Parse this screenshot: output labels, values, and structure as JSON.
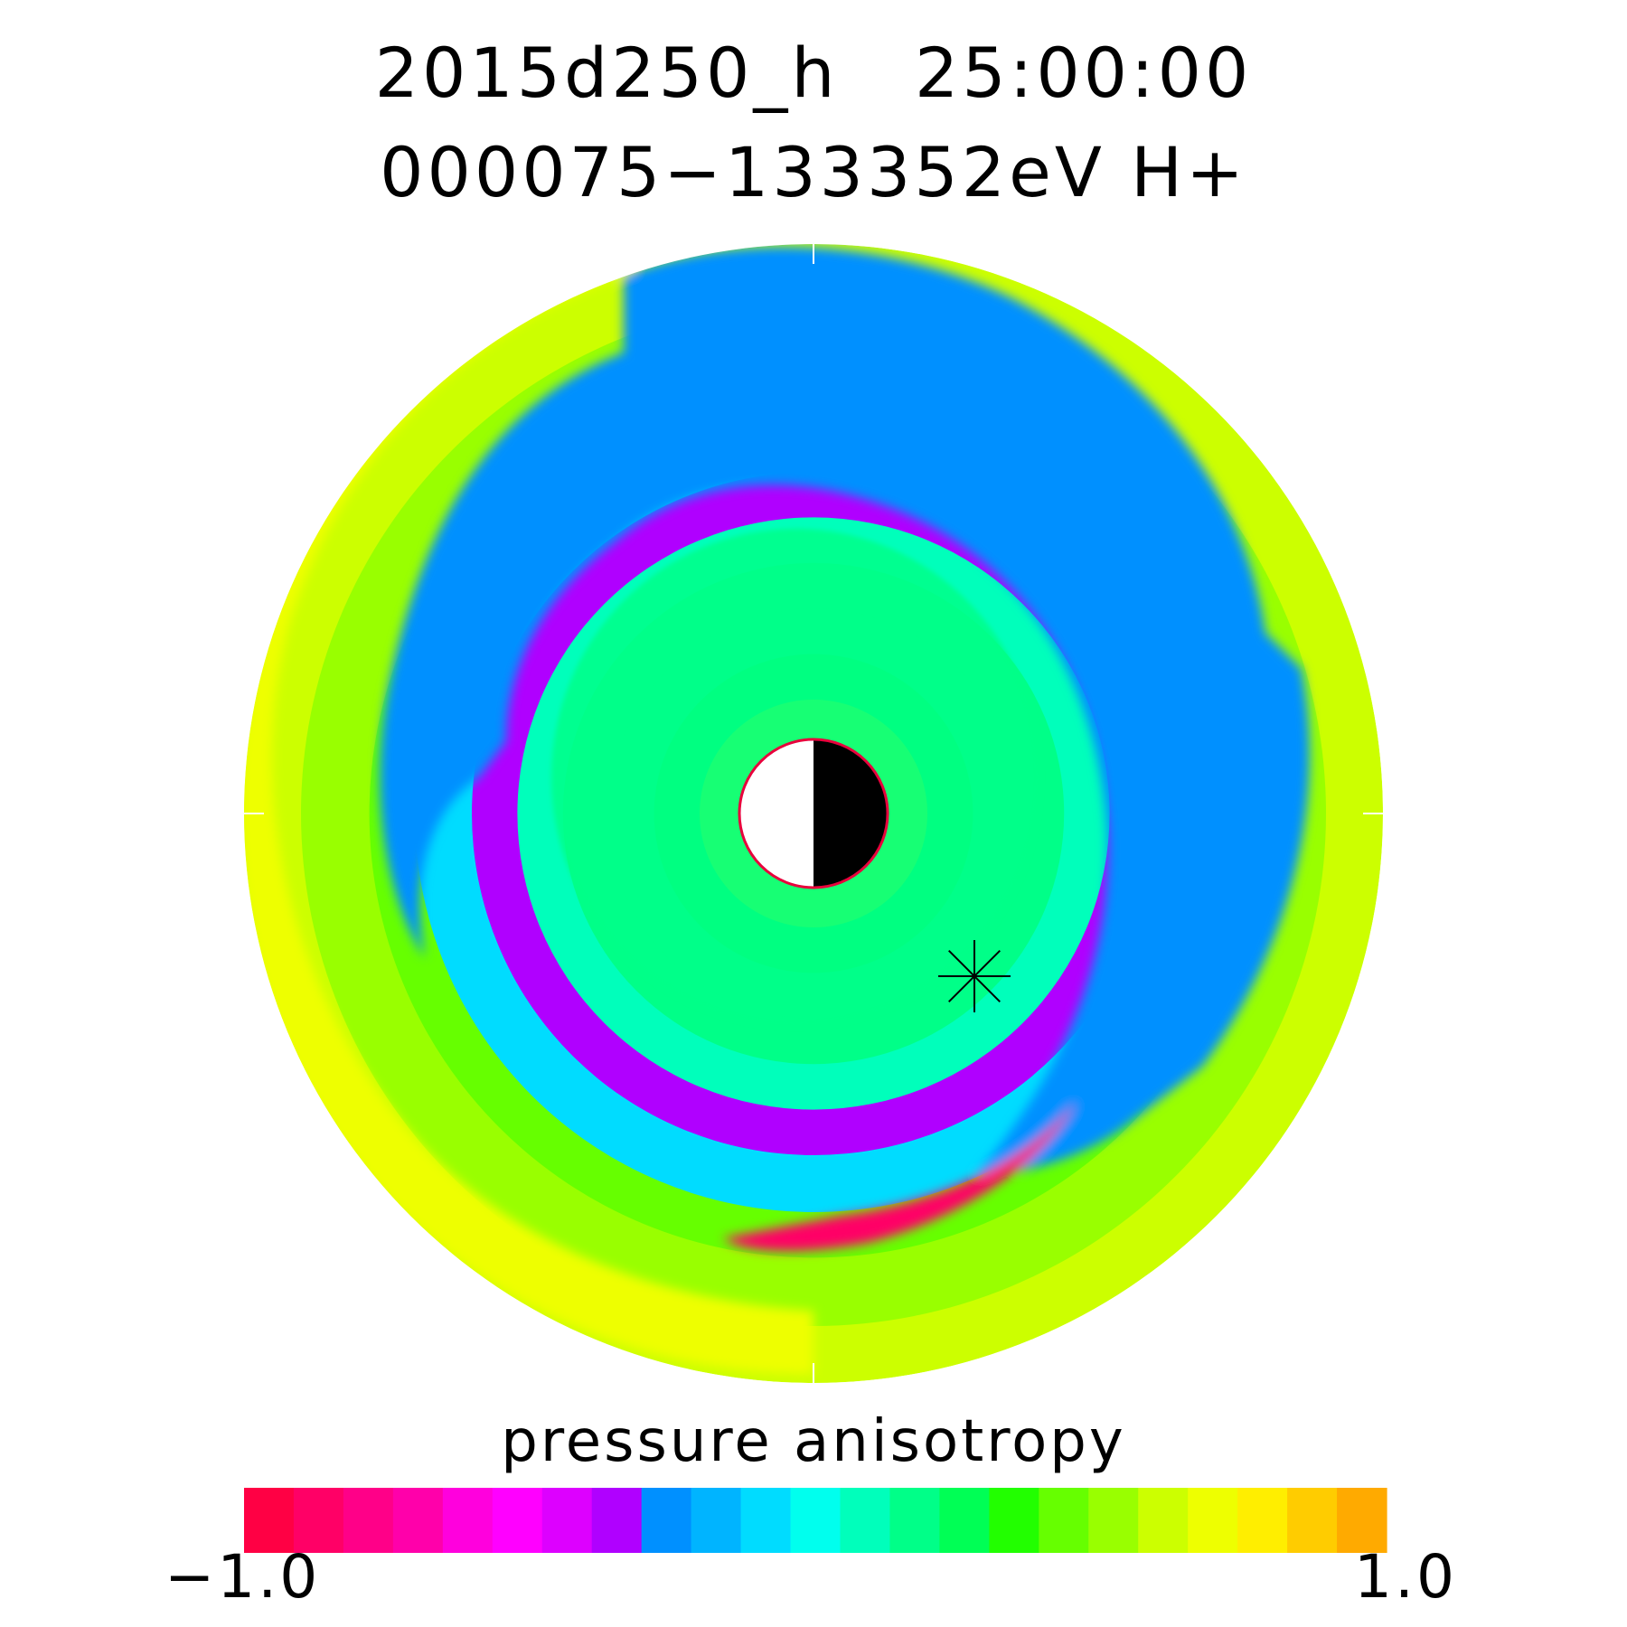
{
  "chart_data": {
    "type": "heatmap",
    "projection": "polar (equatorial plane, Earth at center)",
    "title": "2015d250_h   25:00:00",
    "subtitle": "000075−133352eV H+",
    "colorbar": {
      "label": "pressure anisotropy",
      "min_label": "−1.0",
      "max_label": "1.0",
      "range": [
        -1.0,
        1.0
      ],
      "colors": [
        "#ff0044",
        "#ff0066",
        "#ff0088",
        "#ff00aa",
        "#ff00dd",
        "#ff00ff",
        "#dd00ff",
        "#b000ff",
        "#0090ff",
        "#00b4ff",
        "#00dcff",
        "#00ffee",
        "#00ffbb",
        "#00ff88",
        "#00ff55",
        "#22ff00",
        "#66ff00",
        "#99ff00",
        "#ccff00",
        "#eeff00",
        "#ffee00",
        "#ffcc00",
        "#ffaa00"
      ]
    },
    "rings": [
      {
        "r_norm": 1.0,
        "value": 0.62
      },
      {
        "r_norm": 0.9,
        "value": 0.5
      },
      {
        "r_norm": 0.78,
        "value": 0.4
      },
      {
        "r_norm": 0.7,
        "value": -0.1
      },
      {
        "r_norm": 0.6,
        "value": -0.35
      },
      {
        "r_norm": 0.52,
        "value": 0.05
      },
      {
        "r_norm": 0.44,
        "value": 0.15
      },
      {
        "r_norm": 0.36,
        "value": 0.2
      },
      {
        "r_norm": 0.28,
        "value": 0.3
      },
      {
        "r_norm": 0.2,
        "value": 0.55
      }
    ],
    "features": [
      {
        "name": "dayside/duskside magenta sector",
        "value": -0.3
      },
      {
        "name": "post-midnight red band",
        "value": -0.85
      },
      {
        "name": "dawn-side green/yellow outer band",
        "value": 0.7
      },
      {
        "name": "inner cyan ring current region",
        "value": 0.2
      }
    ],
    "marker": {
      "symbol": "asterisk",
      "location": "post-midnight inner region"
    },
    "earth": {
      "day_color": "#ffffff",
      "night_color": "#000000",
      "outline_color": "#e8003c"
    }
  }
}
